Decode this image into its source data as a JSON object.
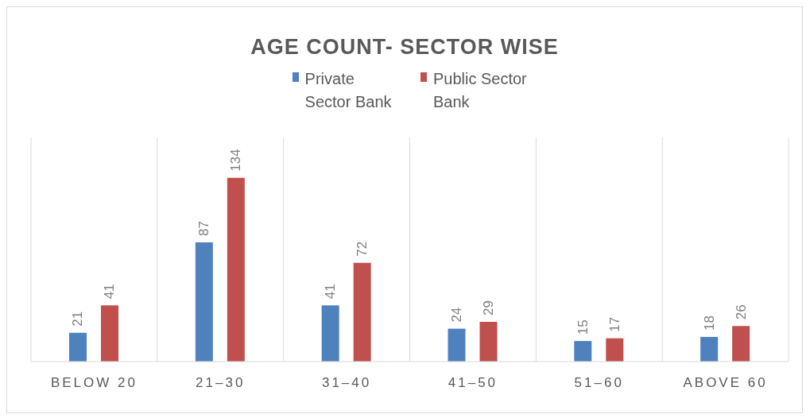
{
  "chart_data": {
    "type": "bar",
    "title": "AGE COUNT- SECTOR WISE",
    "categories": [
      "BELOW 20",
      "21–30",
      "31–40",
      "41–50",
      "51–60",
      "ABOVE 60"
    ],
    "series": [
      {
        "name": "Private Sector Bank",
        "color": "#4f81bd",
        "values": [
          21,
          87,
          41,
          24,
          15,
          18
        ]
      },
      {
        "name": "Public Sector Bank",
        "color": "#c0504d",
        "values": [
          41,
          134,
          72,
          29,
          17,
          26
        ]
      }
    ],
    "data_labels": true,
    "tick_labels": "x",
    "grid": "x",
    "legend": "top"
  }
}
